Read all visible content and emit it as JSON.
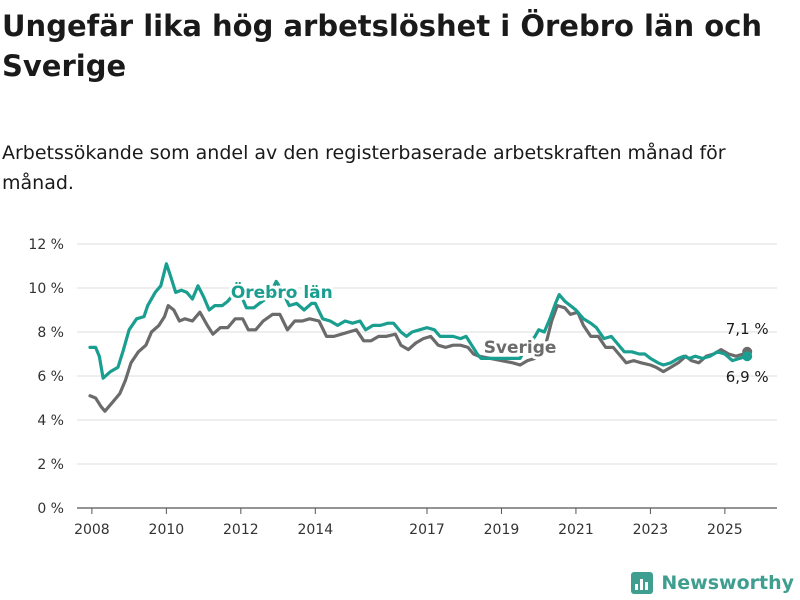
{
  "title": "Ungefär lika hög arbetslöshet i Örebro län och Sverige",
  "subtitle": "Arbetssökande som andel av den registerbaserade arbetskraften månad för månad.",
  "brand": {
    "name": "Newsworthy",
    "icon": "bar-chart-icon"
  },
  "colors": {
    "orebro": "#1a9e8f",
    "sverige": "#6b6b6b",
    "grid": "#dddddd"
  },
  "chart_data": {
    "type": "line",
    "title": "Ungefär lika hög arbetslöshet i Örebro län och Sverige",
    "subtitle": "Arbetssökande som andel av den registerbaserade arbetskraften månad för månad.",
    "xlabel": "",
    "ylabel": "",
    "xlim": [
      2007.6,
      2026.4
    ],
    "ylim": [
      0,
      12
    ],
    "grid": true,
    "yticks": [
      {
        "value": 0,
        "label": "0 %"
      },
      {
        "value": 2,
        "label": "2 %"
      },
      {
        "value": 4,
        "label": "4 %"
      },
      {
        "value": 6,
        "label": "6 %"
      },
      {
        "value": 8,
        "label": "8 %"
      },
      {
        "value": 10,
        "label": "10 %"
      },
      {
        "value": 12,
        "label": "12 %"
      }
    ],
    "xticks": [
      {
        "value": 2008,
        "label": "2008"
      },
      {
        "value": 2010,
        "label": "2010"
      },
      {
        "value": 2012,
        "label": "2012"
      },
      {
        "value": 2014,
        "label": "2014"
      },
      {
        "value": 2017,
        "label": "2017"
      },
      {
        "value": 2019,
        "label": "2019"
      },
      {
        "value": 2021,
        "label": "2021"
      },
      {
        "value": 2023,
        "label": "2023"
      },
      {
        "value": 2025,
        "label": "2025"
      }
    ],
    "series": [
      {
        "name": "Örebro län",
        "label": "Örebro län",
        "end_label": "6,9 %",
        "points": [
          [
            2007.95,
            7.3
          ],
          [
            2008.1,
            7.3
          ],
          [
            2008.2,
            6.9
          ],
          [
            2008.3,
            5.9
          ],
          [
            2008.5,
            6.2
          ],
          [
            2008.7,
            6.4
          ],
          [
            2008.85,
            7.2
          ],
          [
            2009.0,
            8.1
          ],
          [
            2009.2,
            8.6
          ],
          [
            2009.4,
            8.7
          ],
          [
            2009.5,
            9.2
          ],
          [
            2009.7,
            9.8
          ],
          [
            2009.85,
            10.1
          ],
          [
            2010.0,
            11.1
          ],
          [
            2010.1,
            10.6
          ],
          [
            2010.25,
            9.8
          ],
          [
            2010.4,
            9.9
          ],
          [
            2010.55,
            9.8
          ],
          [
            2010.7,
            9.5
          ],
          [
            2010.85,
            10.1
          ],
          [
            2011.0,
            9.6
          ],
          [
            2011.15,
            9.0
          ],
          [
            2011.3,
            9.2
          ],
          [
            2011.5,
            9.2
          ],
          [
            2011.65,
            9.4
          ],
          [
            2011.85,
            9.8
          ],
          [
            2012.0,
            9.7
          ],
          [
            2012.15,
            9.1
          ],
          [
            2012.35,
            9.1
          ],
          [
            2012.5,
            9.3
          ],
          [
            2012.75,
            9.6
          ],
          [
            2012.95,
            10.3
          ],
          [
            2013.1,
            9.9
          ],
          [
            2013.3,
            9.2
          ],
          [
            2013.5,
            9.3
          ],
          [
            2013.7,
            9.0
          ],
          [
            2013.9,
            9.3
          ],
          [
            2014.0,
            9.3
          ],
          [
            2014.2,
            8.6
          ],
          [
            2014.4,
            8.5
          ],
          [
            2014.6,
            8.3
          ],
          [
            2014.8,
            8.5
          ],
          [
            2015.0,
            8.4
          ],
          [
            2015.2,
            8.5
          ],
          [
            2015.35,
            8.1
          ],
          [
            2015.55,
            8.3
          ],
          [
            2015.75,
            8.3
          ],
          [
            2015.95,
            8.4
          ],
          [
            2016.1,
            8.4
          ],
          [
            2016.3,
            8.0
          ],
          [
            2016.45,
            7.8
          ],
          [
            2016.6,
            8.0
          ],
          [
            2016.8,
            8.1
          ],
          [
            2017.0,
            8.2
          ],
          [
            2017.2,
            8.1
          ],
          [
            2017.35,
            7.8
          ],
          [
            2017.5,
            7.8
          ],
          [
            2017.7,
            7.8
          ],
          [
            2017.9,
            7.7
          ],
          [
            2018.05,
            7.8
          ],
          [
            2018.2,
            7.4
          ],
          [
            2018.35,
            7.0
          ],
          [
            2018.45,
            6.8
          ],
          [
            2019.5,
            6.8
          ],
          [
            2019.7,
            7.4
          ],
          [
            2019.9,
            7.8
          ],
          [
            2020.0,
            8.1
          ],
          [
            2020.15,
            8.0
          ],
          [
            2020.3,
            8.6
          ],
          [
            2020.45,
            9.3
          ],
          [
            2020.55,
            9.7
          ],
          [
            2020.7,
            9.4
          ],
          [
            2020.85,
            9.2
          ],
          [
            2021.0,
            9.0
          ],
          [
            2021.2,
            8.6
          ],
          [
            2021.4,
            8.4
          ],
          [
            2021.55,
            8.2
          ],
          [
            2021.75,
            7.7
          ],
          [
            2021.95,
            7.8
          ],
          [
            2022.1,
            7.5
          ],
          [
            2022.3,
            7.1
          ],
          [
            2022.5,
            7.1
          ],
          [
            2022.7,
            7.0
          ],
          [
            2022.85,
            7.0
          ],
          [
            2023.0,
            6.8
          ],
          [
            2023.2,
            6.6
          ],
          [
            2023.35,
            6.5
          ],
          [
            2023.55,
            6.6
          ],
          [
            2023.75,
            6.8
          ],
          [
            2023.9,
            6.9
          ],
          [
            2024.05,
            6.8
          ],
          [
            2024.2,
            6.9
          ],
          [
            2024.4,
            6.8
          ],
          [
            2024.6,
            6.9
          ],
          [
            2024.8,
            7.1
          ],
          [
            2025.0,
            7.0
          ],
          [
            2025.2,
            6.7
          ],
          [
            2025.4,
            6.8
          ],
          [
            2025.6,
            6.9
          ]
        ]
      },
      {
        "name": "Sverige",
        "label": "Sverige",
        "end_label": "7,1 %",
        "points": [
          [
            2007.95,
            5.1
          ],
          [
            2008.1,
            5.0
          ],
          [
            2008.25,
            4.6
          ],
          [
            2008.35,
            4.4
          ],
          [
            2008.55,
            4.8
          ],
          [
            2008.75,
            5.2
          ],
          [
            2008.9,
            5.8
          ],
          [
            2009.05,
            6.6
          ],
          [
            2009.25,
            7.1
          ],
          [
            2009.45,
            7.4
          ],
          [
            2009.6,
            8.0
          ],
          [
            2009.8,
            8.3
          ],
          [
            2009.95,
            8.7
          ],
          [
            2010.05,
            9.2
          ],
          [
            2010.2,
            9.0
          ],
          [
            2010.35,
            8.5
          ],
          [
            2010.5,
            8.6
          ],
          [
            2010.7,
            8.5
          ],
          [
            2010.9,
            8.9
          ],
          [
            2011.1,
            8.3
          ],
          [
            2011.25,
            7.9
          ],
          [
            2011.45,
            8.2
          ],
          [
            2011.65,
            8.2
          ],
          [
            2011.85,
            8.6
          ],
          [
            2012.05,
            8.6
          ],
          [
            2012.2,
            8.1
          ],
          [
            2012.4,
            8.1
          ],
          [
            2012.6,
            8.5
          ],
          [
            2012.85,
            8.8
          ],
          [
            2013.05,
            8.8
          ],
          [
            2013.25,
            8.1
          ],
          [
            2013.45,
            8.5
          ],
          [
            2013.65,
            8.5
          ],
          [
            2013.85,
            8.6
          ],
          [
            2014.1,
            8.5
          ],
          [
            2014.3,
            7.8
          ],
          [
            2014.5,
            7.8
          ],
          [
            2014.7,
            7.9
          ],
          [
            2014.9,
            8.0
          ],
          [
            2015.1,
            8.1
          ],
          [
            2015.3,
            7.6
          ],
          [
            2015.5,
            7.6
          ],
          [
            2015.7,
            7.8
          ],
          [
            2015.9,
            7.8
          ],
          [
            2016.15,
            7.9
          ],
          [
            2016.3,
            7.4
          ],
          [
            2016.5,
            7.2
          ],
          [
            2016.7,
            7.5
          ],
          [
            2016.9,
            7.7
          ],
          [
            2017.1,
            7.8
          ],
          [
            2017.3,
            7.4
          ],
          [
            2017.5,
            7.3
          ],
          [
            2017.7,
            7.4
          ],
          [
            2017.9,
            7.4
          ],
          [
            2018.1,
            7.3
          ],
          [
            2018.25,
            7.0
          ],
          [
            2018.4,
            6.9
          ],
          [
            2019.3,
            6.6
          ],
          [
            2019.5,
            6.5
          ],
          [
            2019.7,
            6.7
          ],
          [
            2019.9,
            6.8
          ],
          [
            2020.05,
            7.0
          ],
          [
            2020.2,
            7.5
          ],
          [
            2020.35,
            8.5
          ],
          [
            2020.5,
            9.2
          ],
          [
            2020.7,
            9.1
          ],
          [
            2020.85,
            8.8
          ],
          [
            2021.05,
            8.9
          ],
          [
            2021.2,
            8.3
          ],
          [
            2021.4,
            7.8
          ],
          [
            2021.6,
            7.8
          ],
          [
            2021.8,
            7.3
          ],
          [
            2022.0,
            7.3
          ],
          [
            2022.15,
            7.0
          ],
          [
            2022.35,
            6.6
          ],
          [
            2022.55,
            6.7
          ],
          [
            2022.75,
            6.6
          ],
          [
            2023.0,
            6.5
          ],
          [
            2023.15,
            6.4
          ],
          [
            2023.35,
            6.2
          ],
          [
            2023.55,
            6.4
          ],
          [
            2023.75,
            6.6
          ],
          [
            2023.95,
            6.9
          ],
          [
            2024.1,
            6.7
          ],
          [
            2024.3,
            6.6
          ],
          [
            2024.5,
            6.9
          ],
          [
            2024.7,
            7.0
          ],
          [
            2024.9,
            7.2
          ],
          [
            2025.1,
            7.0
          ],
          [
            2025.3,
            6.9
          ],
          [
            2025.5,
            7.0
          ],
          [
            2025.6,
            7.1
          ]
        ]
      }
    ]
  }
}
